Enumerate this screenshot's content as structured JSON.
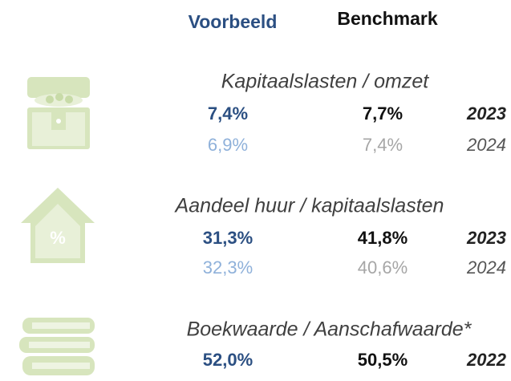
{
  "header": {
    "columns": [
      "Voorbeeld",
      "Benchmark"
    ]
  },
  "sections": [
    {
      "title": "Kapitaalslasten / omzet",
      "rows": [
        [
          "7,4%",
          "7,7%",
          "2023"
        ],
        [
          "6,9%",
          "7,4%",
          "2024"
        ]
      ]
    },
    {
      "title": "Aandeel huur / kapitaalslasten",
      "rows": [
        [
          "31,3%",
          "41,8%",
          "2023"
        ],
        [
          "32,3%",
          "40,6%",
          "2024"
        ]
      ]
    },
    {
      "title": "Boekwaarde / Aanschafwaarde*",
      "rows": [
        [
          "52,0%",
          "50,5%",
          "2022"
        ]
      ]
    }
  ]
}
